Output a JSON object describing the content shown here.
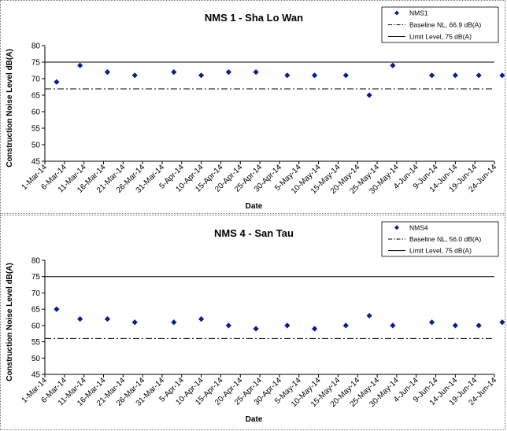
{
  "chart_data": [
    {
      "type": "scatter",
      "title": "NMS 1 - Sha Lo Wan",
      "xlabel": "Date",
      "ylabel": "Construction Noise Level  dB(A)",
      "ylim": [
        45,
        80
      ],
      "yticks": [
        45,
        50,
        55,
        60,
        65,
        70,
        75,
        80
      ],
      "categories": [
        "1-Mar-14",
        "6-Mar-14",
        "11-Mar-14",
        "16-Mar-14",
        "21-Mar-14",
        "26-Mar-14",
        "31-Mar-14",
        "5-Apr-14",
        "10-Apr-14",
        "15-Apr-14",
        "20-Apr-14",
        "25-Apr-14",
        "30-Apr-14",
        "5-May-14",
        "10-May-14",
        "15-May-14",
        "20-May-14",
        "25-May-14",
        "30-May-14",
        "4-Jun-14",
        "9-Jun-14",
        "14-Jun-14",
        "19-Jun-14",
        "24-Jun-14"
      ],
      "series": [
        {
          "name": "NMS1",
          "marker": "diamond",
          "color": "#0a1f8f",
          "points": [
            [
              "4-Mar-14",
              69
            ],
            [
              "10-Mar-14",
              74
            ],
            [
              "17-Mar-14",
              72
            ],
            [
              "24-Mar-14",
              71
            ],
            [
              "3-Apr-14",
              72
            ],
            [
              "10-Apr-14",
              71
            ],
            [
              "17-Apr-14",
              72
            ],
            [
              "24-Apr-14",
              72
            ],
            [
              "2-May-14",
              71
            ],
            [
              "9-May-14",
              71
            ],
            [
              "17-May-14",
              71
            ],
            [
              "23-May-14",
              65
            ],
            [
              "29-May-14",
              74
            ],
            [
              "8-Jun-14",
              71
            ],
            [
              "14-Jun-14",
              71
            ],
            [
              "20-Jun-14",
              71
            ],
            [
              "26-Jun-14",
              71
            ]
          ]
        },
        {
          "name": "Baseline NL, 66.9 dB(A)",
          "style": "dash-dot",
          "value": 66.9
        },
        {
          "name": "Limit Level, 75 dB(A)",
          "style": "solid",
          "value": 75
        }
      ],
      "legend": "top-right",
      "grid": false
    },
    {
      "type": "scatter",
      "title": "NMS 4 - San Tau",
      "xlabel": "Date",
      "ylabel": "Construction Noise Level  dB(A)",
      "ylim": [
        45,
        80
      ],
      "yticks": [
        45,
        50,
        55,
        60,
        65,
        70,
        75,
        80
      ],
      "categories": [
        "1-Mar-14",
        "6-Mar-14",
        "11-Mar-14",
        "16-Mar-14",
        "21-Mar-14",
        "26-Mar-14",
        "31-Mar-14",
        "5-Apr-14",
        "10-Apr-14",
        "15-Apr-14",
        "20-Apr-14",
        "25-Apr-14",
        "30-Apr-14",
        "5-May-14",
        "10-May-14",
        "15-May-14",
        "20-May-14",
        "25-May-14",
        "30-May-14",
        "4-Jun-14",
        "9-Jun-14",
        "14-Jun-14",
        "19-Jun-14",
        "24-Jun-14"
      ],
      "series": [
        {
          "name": "NMS4",
          "marker": "diamond",
          "color": "#0a1f8f",
          "points": [
            [
              "4-Mar-14",
              65
            ],
            [
              "10-Mar-14",
              62
            ],
            [
              "17-Mar-14",
              62
            ],
            [
              "24-Mar-14",
              61
            ],
            [
              "3-Apr-14",
              61
            ],
            [
              "10-Apr-14",
              62
            ],
            [
              "17-Apr-14",
              60
            ],
            [
              "24-Apr-14",
              59
            ],
            [
              "2-May-14",
              60
            ],
            [
              "9-May-14",
              59
            ],
            [
              "17-May-14",
              60
            ],
            [
              "23-May-14",
              63
            ],
            [
              "29-May-14",
              60
            ],
            [
              "8-Jun-14",
              61
            ],
            [
              "14-Jun-14",
              60
            ],
            [
              "20-Jun-14",
              60
            ],
            [
              "26-Jun-14",
              61
            ]
          ]
        },
        {
          "name": "Baseline NL, 56.0 dB(A)",
          "style": "dash-dot",
          "value": 56.0
        },
        {
          "name": "Limit Level, 75 dB(A)",
          "style": "solid",
          "value": 75
        }
      ],
      "legend": "top-right",
      "grid": false
    }
  ]
}
